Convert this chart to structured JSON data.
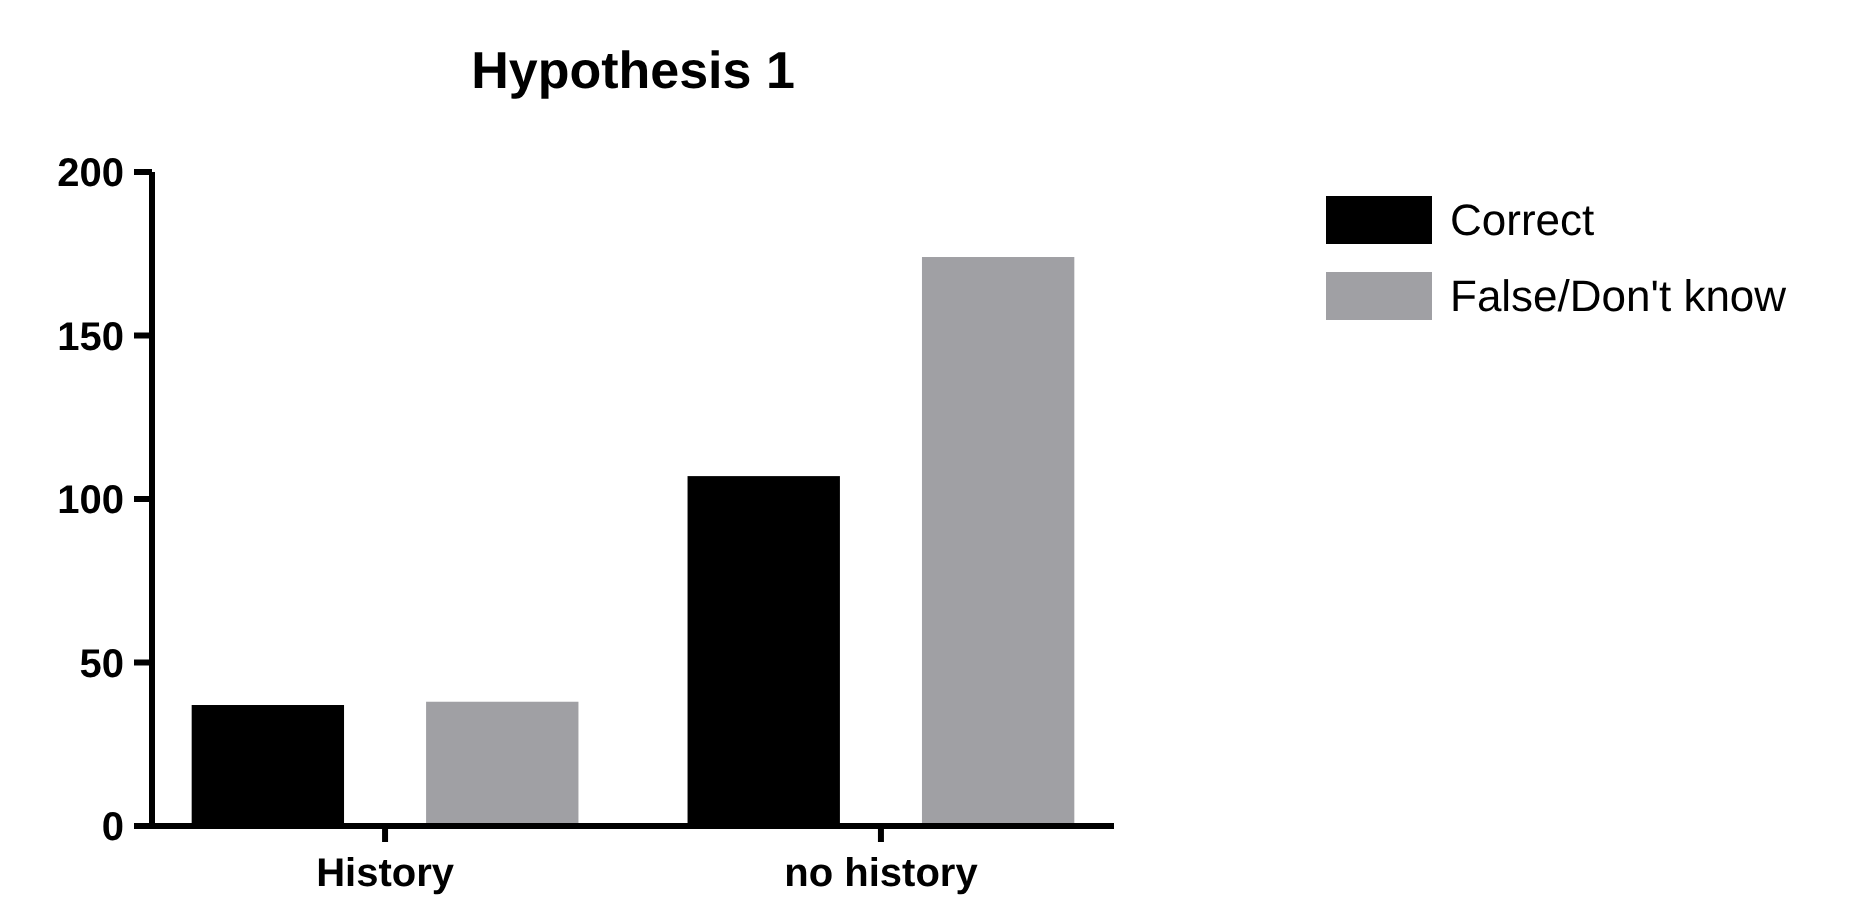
{
  "chart_data": {
    "type": "bar",
    "title": "Hypothesis 1",
    "categories": [
      "History",
      "no history"
    ],
    "series": [
      {
        "name": "Correct",
        "color": "#000000",
        "values": [
          37,
          107
        ]
      },
      {
        "name": "False/Don't know",
        "color": "#a0a0a4",
        "values": [
          38,
          174
        ]
      }
    ],
    "ylim": [
      0,
      200
    ],
    "yticks": [
      0,
      50,
      100,
      150,
      200
    ],
    "grid": false,
    "legend": "top right"
  }
}
